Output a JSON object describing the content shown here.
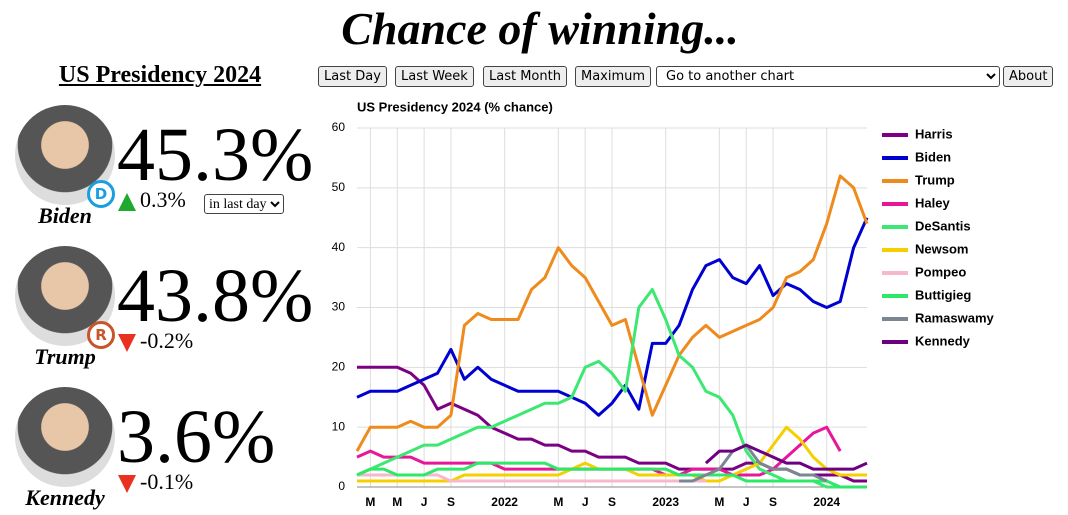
{
  "header": {
    "title": "Chance of winning..."
  },
  "panel": {
    "title": "US Presidency 2024",
    "period_select": "in last day",
    "candidates": [
      {
        "name": "Biden",
        "pct": "45.3%",
        "change": "0.3%",
        "party": "D",
        "party_color": "#1a9ee0"
      },
      {
        "name": "Trump",
        "pct": "43.8%",
        "change": "-0.2%",
        "party": "R",
        "party_color": "#c9542a"
      },
      {
        "name": "Kennedy",
        "pct": "3.6%",
        "change": "-0.1%"
      }
    ]
  },
  "controls": {
    "buttons": [
      "Last Day",
      "Last Week",
      "Last Month",
      "Maximum"
    ],
    "chart_select": "Go to another chart",
    "about": "About"
  },
  "chart_data": {
    "type": "line",
    "title": "US Presidency 2024 (% chance)",
    "grid": true,
    "legend": "right",
    "x": [
      "2021-02",
      "2021-03",
      "2021-04",
      "2021-05",
      "2021-06",
      "2021-07",
      "2021-08",
      "2021-09",
      "2021-10",
      "2021-11",
      "2021-12",
      "2022-01",
      "2022-02",
      "2022-03",
      "2022-04",
      "2022-05",
      "2022-06",
      "2022-07",
      "2022-08",
      "2022-09",
      "2022-10",
      "2022-11",
      "2022-12",
      "2023-01",
      "2023-02",
      "2023-03",
      "2023-04",
      "2023-05",
      "2023-06",
      "2023-07",
      "2023-08",
      "2023-09",
      "2023-10",
      "2023-11",
      "2023-12",
      "2024-01",
      "2024-02",
      "2024-03",
      "2024-04"
    ],
    "xlim": [
      "2021-02",
      "2024-04"
    ],
    "xticks": [
      {
        "value": "2021-03",
        "label": "M"
      },
      {
        "value": "2021-05",
        "label": "M"
      },
      {
        "value": "2021-07",
        "label": "J"
      },
      {
        "value": "2021-09",
        "label": "S"
      },
      {
        "value": "2022-01",
        "label": "2022"
      },
      {
        "value": "2022-05",
        "label": "M"
      },
      {
        "value": "2022-07",
        "label": "J"
      },
      {
        "value": "2022-09",
        "label": "S"
      },
      {
        "value": "2023-01",
        "label": "2023"
      },
      {
        "value": "2023-05",
        "label": "M"
      },
      {
        "value": "2023-07",
        "label": "J"
      },
      {
        "value": "2023-09",
        "label": "S"
      },
      {
        "value": "2024-01",
        "label": "2024"
      }
    ],
    "ylim": [
      0,
      60
    ],
    "yticks": [
      0,
      10,
      20,
      30,
      40,
      50,
      60
    ],
    "series": [
      {
        "name": "Harris",
        "color": "#7b0083",
        "values": [
          20,
          20,
          20,
          20,
          19,
          17,
          13,
          14,
          13,
          12,
          10,
          9,
          8,
          8,
          7,
          7,
          6,
          6,
          5,
          5,
          5,
          4,
          4,
          4,
          3,
          3,
          3,
          3,
          3,
          4,
          4,
          3,
          3,
          2,
          2,
          2,
          2,
          1,
          1
        ]
      },
      {
        "name": "Biden",
        "color": "#0000d0",
        "values": [
          15,
          16,
          16,
          16,
          17,
          18,
          19,
          23,
          18,
          20,
          18,
          17,
          16,
          16,
          16,
          16,
          15,
          14,
          12,
          14,
          17,
          13,
          24,
          24,
          27,
          33,
          37,
          38,
          35,
          34,
          37,
          32,
          34,
          33,
          31,
          30,
          31,
          40,
          45
        ]
      },
      {
        "name": "Trump",
        "color": "#ef8a1c",
        "values": [
          6,
          10,
          10,
          10,
          11,
          10,
          10,
          12,
          27,
          29,
          28,
          28,
          28,
          33,
          35,
          40,
          37,
          35,
          31,
          27,
          28,
          20,
          12,
          17,
          22,
          25,
          27,
          25,
          26,
          27,
          28,
          30,
          35,
          36,
          38,
          44,
          52,
          50,
          44
        ]
      },
      {
        "name": "Haley",
        "color": "#e8179a",
        "values": [
          5,
          6,
          5,
          5,
          5,
          4,
          4,
          4,
          4,
          4,
          4,
          3,
          3,
          3,
          3,
          3,
          3,
          3,
          3,
          3,
          3,
          3,
          3,
          2,
          2,
          3,
          3,
          3,
          2,
          2,
          2,
          3,
          5,
          7,
          9,
          10,
          6,
          null,
          null
        ]
      },
      {
        "name": "DeSantis",
        "color": "#3ce872",
        "values": [
          2,
          3,
          4,
          5,
          6,
          7,
          7,
          8,
          9,
          10,
          10,
          11,
          12,
          13,
          14,
          14,
          15,
          20,
          21,
          19,
          16,
          30,
          33,
          28,
          22,
          20,
          16,
          15,
          12,
          6,
          3,
          2,
          1,
          1,
          1,
          0,
          0,
          0,
          0
        ]
      },
      {
        "name": "Newsom",
        "color": "#f5cf00",
        "values": [
          1,
          1,
          1,
          1,
          1,
          1,
          1,
          1,
          2,
          2,
          2,
          2,
          2,
          2,
          2,
          2,
          3,
          4,
          3,
          3,
          3,
          2,
          2,
          2,
          2,
          2,
          1,
          1,
          2,
          3,
          4,
          7,
          10,
          8,
          5,
          3,
          2,
          2,
          2
        ]
      },
      {
        "name": "Pompeo",
        "color": "#f7b9c9",
        "values": [
          2,
          2,
          2,
          2,
          2,
          2,
          2,
          1,
          1,
          1,
          1,
          1,
          1,
          1,
          1,
          1,
          1,
          1,
          1,
          1,
          1,
          1,
          1,
          1,
          1,
          1,
          1,
          null,
          null,
          null,
          null,
          null,
          null,
          null,
          null,
          null,
          null,
          null,
          null
        ]
      },
      {
        "name": "Buttigieg",
        "color": "#2ee86a",
        "values": [
          2,
          3,
          3,
          2,
          2,
          2,
          3,
          3,
          3,
          4,
          4,
          4,
          4,
          4,
          4,
          3,
          3,
          3,
          3,
          3,
          3,
          3,
          3,
          3,
          2,
          2,
          2,
          2,
          2,
          1,
          1,
          1,
          1,
          1,
          1,
          1,
          0,
          0,
          0
        ]
      },
      {
        "name": "Ramaswamy",
        "color": "#7a8691",
        "values": [
          null,
          null,
          null,
          null,
          null,
          null,
          null,
          null,
          null,
          null,
          null,
          null,
          null,
          null,
          null,
          null,
          null,
          null,
          null,
          null,
          null,
          null,
          null,
          null,
          1,
          1,
          2,
          3,
          6,
          7,
          4,
          3,
          3,
          2,
          2,
          1,
          null,
          null,
          null
        ]
      },
      {
        "name": "Kennedy",
        "color": "#6d0081",
        "values": [
          null,
          null,
          null,
          null,
          null,
          null,
          null,
          null,
          null,
          null,
          null,
          null,
          null,
          null,
          null,
          null,
          null,
          null,
          null,
          null,
          null,
          null,
          null,
          null,
          null,
          null,
          4,
          6,
          6,
          7,
          6,
          5,
          4,
          4,
          3,
          3,
          3,
          3,
          4
        ]
      }
    ]
  }
}
